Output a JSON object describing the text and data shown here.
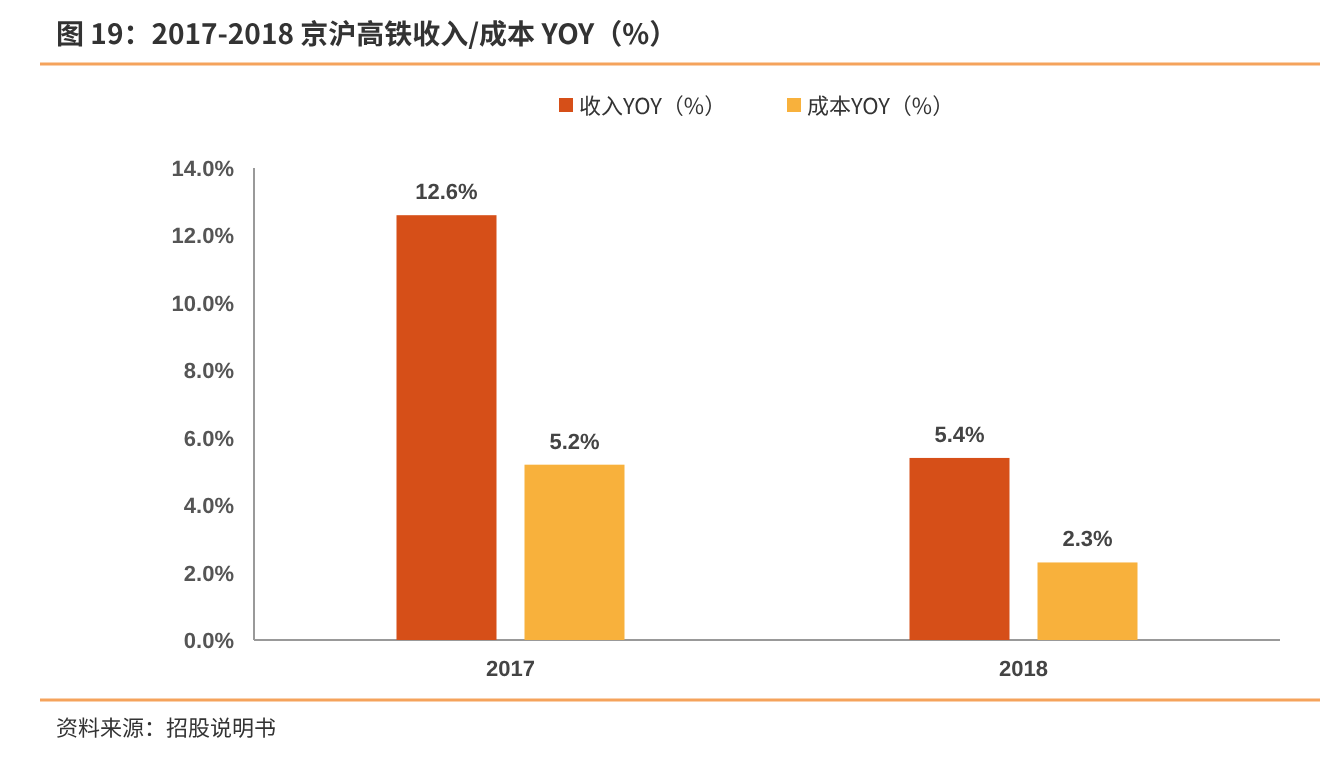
{
  "chart_data": {
    "type": "bar",
    "title": "图 19：2017-2018 京沪高铁收入/成本 YOY（%）",
    "categories": [
      "2017",
      "2018"
    ],
    "series": [
      {
        "name": "收入YOY（%）",
        "color": "#d64f18",
        "values": [
          12.6,
          5.4
        ]
      },
      {
        "name": "成本YOY（%）",
        "color": "#f8b13c",
        "values": [
          5.2,
          2.3
        ]
      }
    ],
    "ylim": [
      0,
      14
    ],
    "yticks": [
      {
        "value": 0,
        "label": "0.0%"
      },
      {
        "value": 2,
        "label": "2.0%"
      },
      {
        "value": 4,
        "label": "4.0%"
      },
      {
        "value": 6,
        "label": "6.0%"
      },
      {
        "value": 8,
        "label": "8.0%"
      },
      {
        "value": 10,
        "label": "10.0%"
      },
      {
        "value": 12,
        "label": "12.0%"
      },
      {
        "value": 14,
        "label": "14.0%"
      }
    ],
    "value_labels": [
      [
        "12.6%",
        "5.4%"
      ],
      [
        "5.2%",
        "2.3%"
      ]
    ],
    "legend": "top",
    "annotations": [
      "资料来源：招股说明书"
    ]
  }
}
